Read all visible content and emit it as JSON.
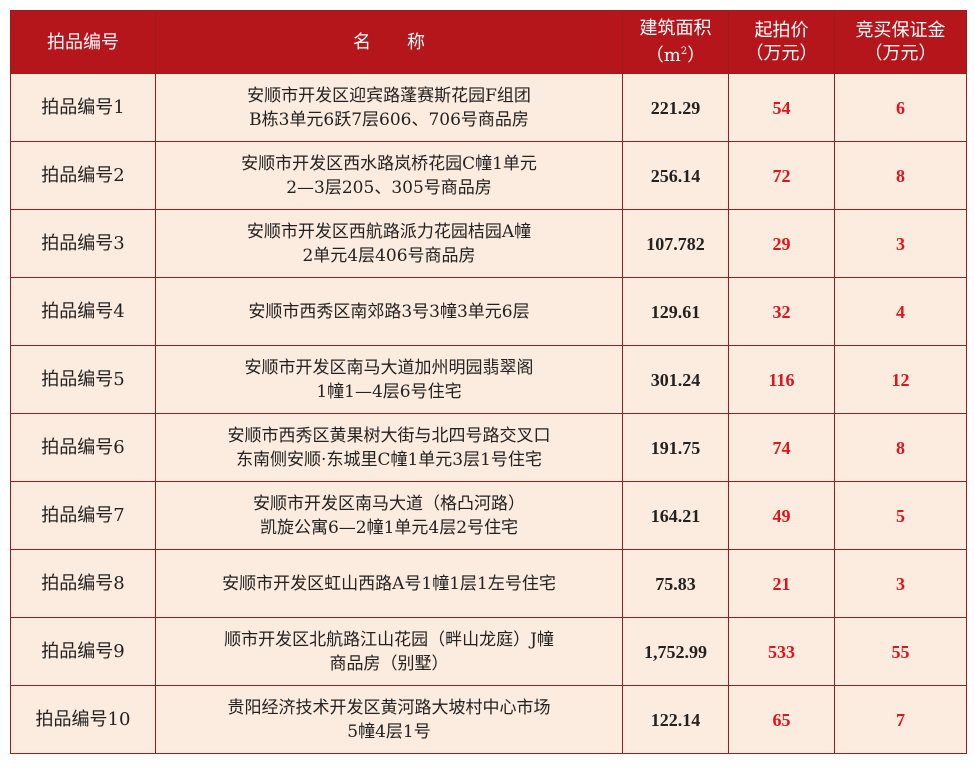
{
  "headers": {
    "lot": "拍品编号",
    "name": "名　　称",
    "area": "建筑面积",
    "area_unit_open": "（m",
    "area_unit_sup": "2",
    "area_unit_close": "）",
    "price": "起拍价",
    "price_unit": "（万元）",
    "deposit": "竞买保证金",
    "deposit_unit": "（万元）"
  },
  "rows": [
    {
      "lot": "拍品编号1",
      "name1": "安顺市开发区迎宾路蓬赛斯花园F组团",
      "name2": "B栋3单元6跃7层606、706号商品房",
      "area": "221.29",
      "price": "54",
      "deposit": "6"
    },
    {
      "lot": "拍品编号2",
      "name1": "安顺市开发区西水路岚桥花园C幢1单元",
      "name2": "2—3层205、305号商品房",
      "area": "256.14",
      "price": "72",
      "deposit": "8"
    },
    {
      "lot": "拍品编号3",
      "name1": "安顺市开发区西航路派力花园桔园A幢",
      "name2": "2单元4层406号商品房",
      "area": "107.782",
      "price": "29",
      "deposit": "3"
    },
    {
      "lot": "拍品编号4",
      "name1": "安顺市西秀区南郊路3号3幢3单元6层",
      "name2": "",
      "area": "129.61",
      "price": "32",
      "deposit": "4"
    },
    {
      "lot": "拍品编号5",
      "name1": "安顺市开发区南马大道加州明园翡翠阁",
      "name2": "1幢1—4层6号住宅",
      "area": "301.24",
      "price": "116",
      "deposit": "12"
    },
    {
      "lot": "拍品编号6",
      "name1": "安顺市西秀区黄果树大街与北四号路交叉口",
      "name2": "东南侧安顺·东城里C幢1单元3层1号住宅",
      "area": "191.75",
      "price": "74",
      "deposit": "8"
    },
    {
      "lot": "拍品编号7",
      "name1": "安顺市开发区南马大道（格凸河路）",
      "name2": "凯旋公寓6—2幢1单元4层2号住宅",
      "area": "164.21",
      "price": "49",
      "deposit": "5"
    },
    {
      "lot": "拍品编号8",
      "name1": "安顺市开发区虹山西路A号1幢1层1左号住宅",
      "name2": "",
      "area": "75.83",
      "price": "21",
      "deposit": "3"
    },
    {
      "lot": "拍品编号9",
      "name1": "顺市开发区北航路江山花园（畔山龙庭）J幢",
      "name2": "商品房（别墅）",
      "area": "1,752.99",
      "price": "533",
      "deposit": "55"
    },
    {
      "lot": "拍品编号10",
      "name1": "贵阳经济技术开发区黄河路大坡村中心市场",
      "name2": "5幢4层1号",
      "area": "122.14",
      "price": "65",
      "deposit": "7"
    }
  ],
  "colors": {
    "header_bg": "#b5161b",
    "cell_bg": "#fcebdf",
    "border": "#9c1c1c",
    "price_text": "#e0151b"
  }
}
